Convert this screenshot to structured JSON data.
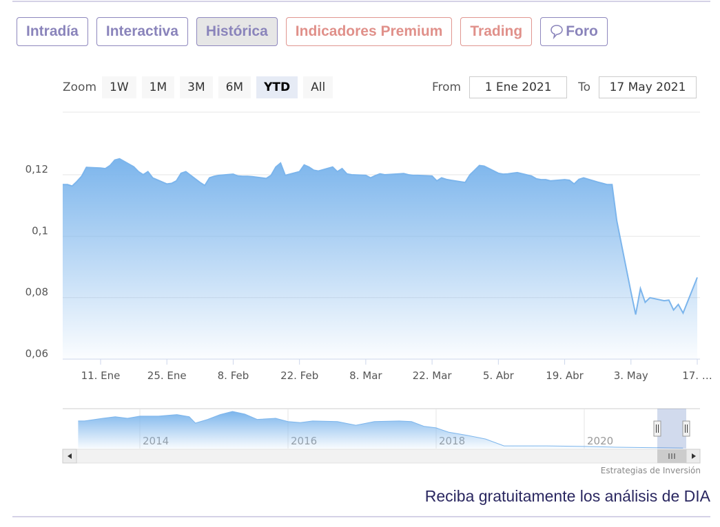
{
  "tabs": [
    {
      "label": "Intradía",
      "style": "normal"
    },
    {
      "label": "Interactiva",
      "style": "normal"
    },
    {
      "label": "Histórica",
      "style": "active"
    },
    {
      "label": "Indicadores Premium",
      "style": "red"
    },
    {
      "label": "Trading",
      "style": "red"
    },
    {
      "label": "Foro",
      "style": "normal",
      "icon": "speech-bubble-icon"
    }
  ],
  "range_selector": {
    "zoom_label": "Zoom",
    "buttons": [
      "1W",
      "1M",
      "3M",
      "6M",
      "YTD",
      "All"
    ],
    "selected": "YTD",
    "from_label": "From",
    "from_value": "1 Ene 2021",
    "to_label": "To",
    "to_value": "17 May 2021"
  },
  "credit": "Estrategias de Inversión",
  "cta": "Reciba gratuitamente los análisis de DIA",
  "colors": {
    "line": "#7cb5ec",
    "accent": "#8a84bb",
    "red": "#e0908a"
  },
  "chart_data": {
    "type": "area",
    "grid": true,
    "ylim": [
      0.06,
      0.13
    ],
    "yticks": [
      "0,06",
      "0,08",
      "0,1",
      "0,12"
    ],
    "ytick_values": [
      0.06,
      0.08,
      0.1,
      0.12
    ],
    "xlim": [
      "2021-01-03",
      "2021-05-17"
    ],
    "xticks": [
      {
        "date": "2021-01-11",
        "label": "11. Ene"
      },
      {
        "date": "2021-01-25",
        "label": "25. Ene"
      },
      {
        "date": "2021-02-08",
        "label": "8. Feb"
      },
      {
        "date": "2021-02-22",
        "label": "22. Feb"
      },
      {
        "date": "2021-03-08",
        "label": "8. Mar"
      },
      {
        "date": "2021-03-22",
        "label": "22. Mar"
      },
      {
        "date": "2021-04-05",
        "label": "5. Abr"
      },
      {
        "date": "2021-04-19",
        "label": "19. Abr"
      },
      {
        "date": "2021-05-03",
        "label": "3. May"
      },
      {
        "date": "2021-05-17",
        "label": "17. …"
      }
    ],
    "x": [
      "2021-01-04",
      "2021-01-05",
      "2021-01-06",
      "2021-01-07",
      "2021-01-08",
      "2021-01-11",
      "2021-01-12",
      "2021-01-13",
      "2021-01-14",
      "2021-01-15",
      "2021-01-18",
      "2021-01-19",
      "2021-01-20",
      "2021-01-21",
      "2021-01-22",
      "2021-01-25",
      "2021-01-26",
      "2021-01-27",
      "2021-01-28",
      "2021-01-29",
      "2021-02-01",
      "2021-02-02",
      "2021-02-03",
      "2021-02-04",
      "2021-02-05",
      "2021-02-08",
      "2021-02-09",
      "2021-02-10",
      "2021-02-11",
      "2021-02-12",
      "2021-02-15",
      "2021-02-16",
      "2021-02-17",
      "2021-02-18",
      "2021-02-19",
      "2021-02-22",
      "2021-02-23",
      "2021-02-24",
      "2021-02-25",
      "2021-02-26",
      "2021-03-01",
      "2021-03-02",
      "2021-03-03",
      "2021-03-04",
      "2021-03-05",
      "2021-03-08",
      "2021-03-09",
      "2021-03-10",
      "2021-03-11",
      "2021-03-12",
      "2021-03-15",
      "2021-03-16",
      "2021-03-17",
      "2021-03-18",
      "2021-03-19",
      "2021-03-22",
      "2021-03-23",
      "2021-03-24",
      "2021-03-25",
      "2021-03-26",
      "2021-03-29",
      "2021-03-30",
      "2021-03-31",
      "2021-04-01",
      "2021-04-02",
      "2021-04-05",
      "2021-04-06",
      "2021-04-07",
      "2021-04-08",
      "2021-04-09",
      "2021-04-12",
      "2021-04-13",
      "2021-04-14",
      "2021-04-15",
      "2021-04-16",
      "2021-04-19",
      "2021-04-20",
      "2021-04-21",
      "2021-04-22",
      "2021-04-23",
      "2021-04-26",
      "2021-04-27",
      "2021-04-28",
      "2021-04-29",
      "2021-04-30",
      "2021-05-03",
      "2021-05-04",
      "2021-05-05",
      "2021-05-06",
      "2021-05-07",
      "2021-05-10",
      "2021-05-11",
      "2021-05-12",
      "2021-05-13",
      "2021-05-14",
      "2021-05-17"
    ],
    "values": [
      0.1168,
      0.1163,
      0.1178,
      0.1195,
      0.1224,
      0.1222,
      0.122,
      0.123,
      0.1248,
      0.1252,
      0.1226,
      0.121,
      0.12,
      0.121,
      0.119,
      0.117,
      0.1172,
      0.118,
      0.1205,
      0.121,
      0.1175,
      0.1165,
      0.119,
      0.1195,
      0.1198,
      0.1202,
      0.1196,
      0.1195,
      0.1195,
      0.1194,
      0.1188,
      0.1198,
      0.1225,
      0.1238,
      0.1198,
      0.121,
      0.1232,
      0.1225,
      0.1215,
      0.1212,
      0.1225,
      0.121,
      0.122,
      0.1203,
      0.12,
      0.1198,
      0.119,
      0.1197,
      0.1203,
      0.12,
      0.1203,
      0.1204,
      0.12,
      0.1198,
      0.1198,
      0.1196,
      0.118,
      0.119,
      0.1185,
      0.1182,
      0.1175,
      0.12,
      0.1215,
      0.123,
      0.1228,
      0.1205,
      0.1202,
      0.1203,
      0.1205,
      0.1207,
      0.1196,
      0.1187,
      0.1184,
      0.1184,
      0.118,
      0.1184,
      0.1182,
      0.117,
      0.1185,
      0.119,
      0.1176,
      0.1172,
      0.1168,
      0.1168,
      0.105,
      0.0818,
      0.0745,
      0.083,
      0.0785,
      0.08,
      0.079,
      0.0792,
      0.076,
      0.0778,
      0.075,
      0.0866
    ],
    "navigator": {
      "xticks": [
        "2014",
        "2016",
        "2018",
        "2020"
      ],
      "x": [
        "2013-03",
        "2013-04",
        "2013-07",
        "2013-09",
        "2013-11",
        "2014-01",
        "2014-04",
        "2014-07",
        "2014-09",
        "2014-10",
        "2014-12",
        "2015-02",
        "2015-04",
        "2015-06",
        "2015-08",
        "2015-11",
        "2016-01",
        "2016-03",
        "2016-05",
        "2016-09",
        "2016-12",
        "2017-03",
        "2017-07",
        "2017-09",
        "2017-11",
        "2018-01",
        "2018-03",
        "2018-06",
        "2018-09",
        "2018-12",
        "2019-03",
        "2019-07",
        "2020-01",
        "2020-06",
        "2021-05"
      ],
      "values": [
        5.2,
        5.2,
        5.7,
        6.0,
        5.7,
        6.1,
        6.1,
        6.4,
        6.0,
        4.8,
        5.5,
        6.4,
        7.0,
        6.5,
        5.5,
        5.7,
        5.1,
        4.9,
        5.2,
        5.1,
        4.4,
        5.1,
        5.2,
        5.1,
        4.2,
        3.9,
        3.1,
        2.5,
        1.8,
        0.5,
        0.5,
        0.5,
        0.4,
        0.26,
        0.09
      ],
      "selected_range": [
        "2021-01-03",
        "2021-05-17"
      ]
    }
  }
}
